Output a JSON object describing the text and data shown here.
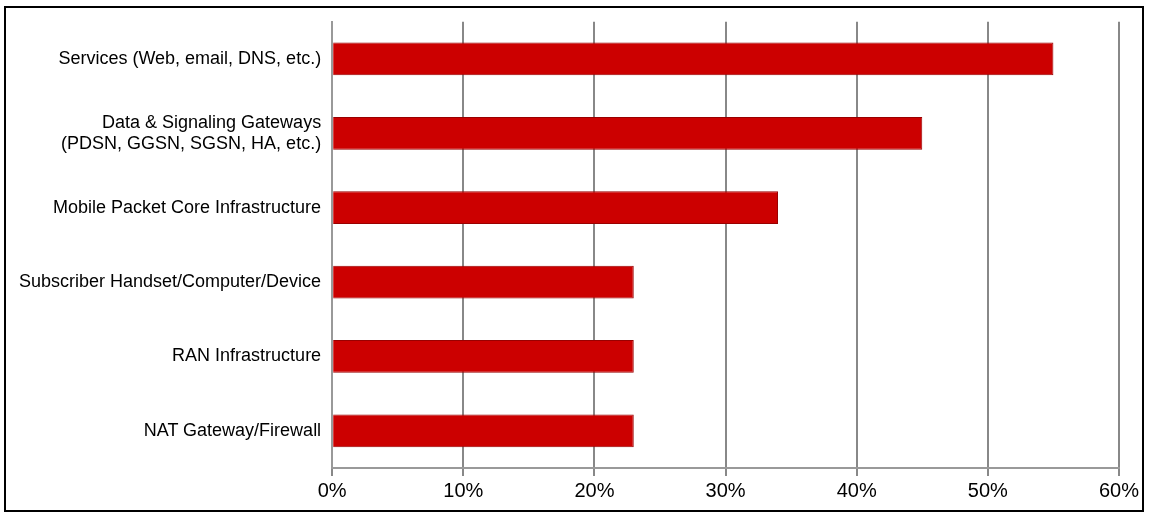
{
  "chart_data": {
    "type": "bar",
    "orientation": "horizontal",
    "categories": [
      "Services (Web, email, DNS, etc.)",
      [
        "Data & Signaling Gateways",
        "(PDSN, GGSN, SGSN, HA, etc.)"
      ],
      "Mobile Packet Core Infrastructure",
      "Subscriber Handset/Computer/Device",
      "RAN Infrastructure",
      "NAT Gateway/Firewall"
    ],
    "values": [
      55,
      45,
      34,
      23,
      23,
      23
    ],
    "color": "#cc0000",
    "xlim": [
      0,
      60
    ],
    "xticks": [
      {
        "value": 0,
        "label": "0%"
      },
      {
        "value": 10,
        "label": "10%"
      },
      {
        "value": 20,
        "label": "20%"
      },
      {
        "value": 30,
        "label": "30%"
      },
      {
        "value": 40,
        "label": "40%"
      },
      {
        "value": 50,
        "label": "50%"
      },
      {
        "value": 60,
        "label": "60%"
      }
    ],
    "grid": "x",
    "legend": false
  }
}
